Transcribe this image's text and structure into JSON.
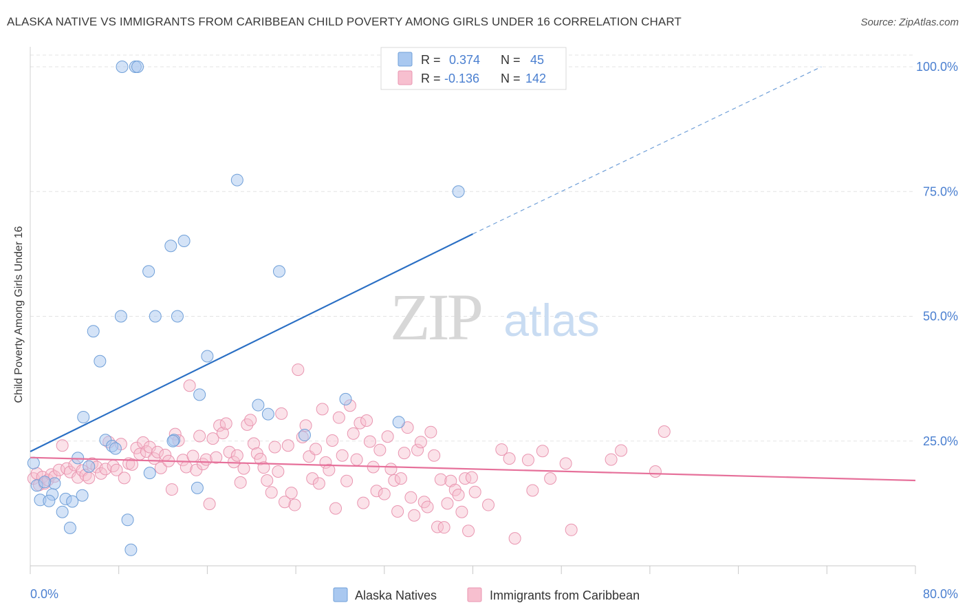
{
  "header": {
    "title": "ALASKA NATIVE VS IMMIGRANTS FROM CARIBBEAN CHILD POVERTY AMONG GIRLS UNDER 16 CORRELATION CHART",
    "source": "Source: ZipAtlas.com"
  },
  "watermark": {
    "zip": "ZIP",
    "atlas": "atlas"
  },
  "colors": {
    "blue_fill": "#a9c8f0",
    "blue_stroke": "#6f9fd8",
    "blue_line": "#2a6fc4",
    "pink_fill": "#f7bfcf",
    "pink_stroke": "#e995b0",
    "pink_line": "#e6709a",
    "axis_label": "#4a7fd0",
    "grid": "#e3e3e3"
  },
  "legend": {
    "rows": [
      {
        "r_label": "R =",
        "r_value": "0.374",
        "n_label": "N =",
        "n_value": "45"
      },
      {
        "r_label": "R =",
        "r_value": "-0.136",
        "n_label": "N =",
        "n_value": "142"
      }
    ]
  },
  "bottom_legend": {
    "items": [
      "Alaska Natives",
      "Immigrants from Caribbean"
    ]
  },
  "chart_data": {
    "type": "scatter",
    "title": "ALASKA NATIVE VS IMMIGRANTS FROM CARIBBEAN CHILD POVERTY AMONG GIRLS UNDER 16 CORRELATION CHART",
    "xlabel": "",
    "ylabel": "Child Poverty Among Girls Under 16",
    "xlim": [
      0,
      80
    ],
    "ylim": [
      0,
      100
    ],
    "x_tick_labels": [
      "0.0%",
      "80.0%"
    ],
    "y_ticks": [
      25,
      50,
      75,
      100
    ],
    "y_tick_labels": [
      "25.0%",
      "50.0%",
      "75.0%",
      "100.0%"
    ],
    "grid": true,
    "series": [
      {
        "name": "Alaska Natives",
        "color": "blue",
        "r": 0.374,
        "n": 45,
        "trend": {
          "x0": 0,
          "y0": 22.9,
          "x1": 40,
          "y1": 66.5,
          "dash_to_x": 71.5,
          "dash_to_y": 100
        },
        "points": [
          [
            8.3,
            100
          ],
          [
            9.5,
            100
          ],
          [
            9.7,
            100
          ],
          [
            18.7,
            77.3
          ],
          [
            38.7,
            75
          ],
          [
            13.9,
            65.1
          ],
          [
            12.7,
            64.1
          ],
          [
            10.7,
            59
          ],
          [
            22.5,
            59
          ],
          [
            8.2,
            50
          ],
          [
            11.3,
            50
          ],
          [
            13.3,
            50
          ],
          [
            5.7,
            47
          ],
          [
            6.3,
            41
          ],
          [
            16,
            42
          ],
          [
            15.3,
            34.3
          ],
          [
            28.5,
            33.4
          ],
          [
            20.6,
            32.2
          ],
          [
            21.5,
            30.4
          ],
          [
            4.8,
            29.8
          ],
          [
            33.3,
            28.8
          ],
          [
            24.8,
            26.2
          ],
          [
            6.8,
            25.2
          ],
          [
            13,
            25.2
          ],
          [
            7.4,
            24
          ],
          [
            7.7,
            23.5
          ],
          [
            4.3,
            21.6
          ],
          [
            0.3,
            20.6
          ],
          [
            5.3,
            19.9
          ],
          [
            10.8,
            18.6
          ],
          [
            0.6,
            16.1
          ],
          [
            2.2,
            16.5
          ],
          [
            1.3,
            16.8
          ],
          [
            15.1,
            15.6
          ],
          [
            4.7,
            14.1
          ],
          [
            2,
            14.3
          ],
          [
            0.9,
            13.2
          ],
          [
            1.7,
            13
          ],
          [
            3.2,
            13.4
          ],
          [
            3.8,
            12.9
          ],
          [
            2.9,
            10.8
          ],
          [
            8.8,
            9.2
          ],
          [
            3.6,
            7.6
          ],
          [
            9.1,
            3.2
          ],
          [
            12.9,
            25
          ]
        ]
      },
      {
        "name": "Immigrants from Caribbean",
        "color": "pink",
        "r": -0.136,
        "n": 142,
        "trend": {
          "x0": 0,
          "y0": 21.7,
          "x1": 80,
          "y1": 17.1
        },
        "points": [
          [
            0.3,
            17.5
          ],
          [
            0.6,
            18.5
          ],
          [
            0.8,
            16.2
          ],
          [
            1.1,
            17.8
          ],
          [
            1.3,
            16.5
          ],
          [
            1.6,
            17.2
          ],
          [
            1.9,
            18.3
          ],
          [
            2.2,
            17.9
          ],
          [
            2.6,
            19.2
          ],
          [
            2.9,
            24.1
          ],
          [
            3.3,
            19.5
          ],
          [
            3.6,
            18.8
          ],
          [
            4,
            20.2
          ],
          [
            4.3,
            17.7
          ],
          [
            4.7,
            19.1
          ],
          [
            5,
            18.2
          ],
          [
            5.3,
            17.6
          ],
          [
            5.6,
            20.5
          ],
          [
            6,
            19.8
          ],
          [
            6.4,
            18.5
          ],
          [
            6.8,
            19.4
          ],
          [
            7.1,
            24.8
          ],
          [
            7.5,
            20
          ],
          [
            7.8,
            19.2
          ],
          [
            8.2,
            24.4
          ],
          [
            8.5,
            17.6
          ],
          [
            8.9,
            20.5
          ],
          [
            9.2,
            20.3
          ],
          [
            9.6,
            23.6
          ],
          [
            9.9,
            22.4
          ],
          [
            10.2,
            24.7
          ],
          [
            10.5,
            22.9
          ],
          [
            10.8,
            23.8
          ],
          [
            11.2,
            21.5
          ],
          [
            11.5,
            22.8
          ],
          [
            11.8,
            19.6
          ],
          [
            12.2,
            22.2
          ],
          [
            12.5,
            21
          ],
          [
            12.8,
            15.3
          ],
          [
            13.1,
            26.4
          ],
          [
            13.4,
            25.1
          ],
          [
            13.8,
            21.2
          ],
          [
            14.1,
            19.8
          ],
          [
            14.4,
            36.1
          ],
          [
            14.7,
            22
          ],
          [
            15,
            19.2
          ],
          [
            15.3,
            26
          ],
          [
            15.6,
            20.4
          ],
          [
            15.9,
            21.3
          ],
          [
            16.2,
            12.4
          ],
          [
            16.5,
            25.5
          ],
          [
            16.8,
            21.7
          ],
          [
            17.1,
            28.1
          ],
          [
            17.4,
            26.6
          ],
          [
            17.7,
            28.5
          ],
          [
            18,
            22.8
          ],
          [
            18.4,
            20.8
          ],
          [
            18.7,
            22.1
          ],
          [
            19,
            16.7
          ],
          [
            19.3,
            19.5
          ],
          [
            19.6,
            28.3
          ],
          [
            19.9,
            29.2
          ],
          [
            20.2,
            24.5
          ],
          [
            20.5,
            22.5
          ],
          [
            20.8,
            21.4
          ],
          [
            21.1,
            19.7
          ],
          [
            21.4,
            17.1
          ],
          [
            21.8,
            14.7
          ],
          [
            22.1,
            23.8
          ],
          [
            22.4,
            18.9
          ],
          [
            22.7,
            30.5
          ],
          [
            23,
            12.8
          ],
          [
            23.3,
            24.1
          ],
          [
            23.6,
            14.6
          ],
          [
            23.9,
            12.2
          ],
          [
            24.2,
            39.3
          ],
          [
            24.6,
            25.8
          ],
          [
            24.9,
            28.1
          ],
          [
            25.2,
            21.9
          ],
          [
            25.5,
            17.5
          ],
          [
            25.8,
            23.4
          ],
          [
            26.1,
            16.5
          ],
          [
            26.4,
            31.4
          ],
          [
            26.7,
            20.7
          ],
          [
            27,
            19.2
          ],
          [
            27.3,
            25.1
          ],
          [
            27.6,
            11.5
          ],
          [
            27.9,
            29.7
          ],
          [
            28.2,
            22.1
          ],
          [
            28.6,
            17
          ],
          [
            28.9,
            32.1
          ],
          [
            29.2,
            26.5
          ],
          [
            29.5,
            21.3
          ],
          [
            29.8,
            28.6
          ],
          [
            30.1,
            12.6
          ],
          [
            30.4,
            29.1
          ],
          [
            30.7,
            24.9
          ],
          [
            31,
            19.8
          ],
          [
            31.3,
            15
          ],
          [
            31.6,
            23.2
          ],
          [
            32,
            14.4
          ],
          [
            32.3,
            25.9
          ],
          [
            32.6,
            19.4
          ],
          [
            32.9,
            17.1
          ],
          [
            33.2,
            10.9
          ],
          [
            33.5,
            17.5
          ],
          [
            33.8,
            22.6
          ],
          [
            34.1,
            27.7
          ],
          [
            34.4,
            13.7
          ],
          [
            34.7,
            10.1
          ],
          [
            35,
            23.2
          ],
          [
            35.3,
            24.8
          ],
          [
            35.6,
            12.8
          ],
          [
            35.9,
            11.8
          ],
          [
            36.2,
            26.8
          ],
          [
            36.5,
            22.1
          ],
          [
            36.8,
            7.8
          ],
          [
            37.1,
            17.3
          ],
          [
            37.4,
            7.7
          ],
          [
            37.7,
            12.5
          ],
          [
            38,
            17
          ],
          [
            38.4,
            15.2
          ],
          [
            38.7,
            14.2
          ],
          [
            39,
            10.8
          ],
          [
            39.3,
            17.5
          ],
          [
            39.6,
            7
          ],
          [
            39.9,
            17.7
          ],
          [
            40.2,
            14.8
          ],
          [
            43.3,
            21.5
          ],
          [
            43.8,
            5.5
          ],
          [
            41.4,
            12.2
          ],
          [
            42.6,
            23.3
          ],
          [
            45,
            21.2
          ],
          [
            45.4,
            15.1
          ],
          [
            46.3,
            23
          ],
          [
            47,
            17.5
          ],
          [
            48.4,
            20.5
          ],
          [
            48.9,
            7.2
          ],
          [
            52.5,
            21.3
          ],
          [
            53.4,
            23.1
          ],
          [
            56.5,
            18.9
          ],
          [
            57.3,
            26.9
          ]
        ]
      }
    ]
  }
}
